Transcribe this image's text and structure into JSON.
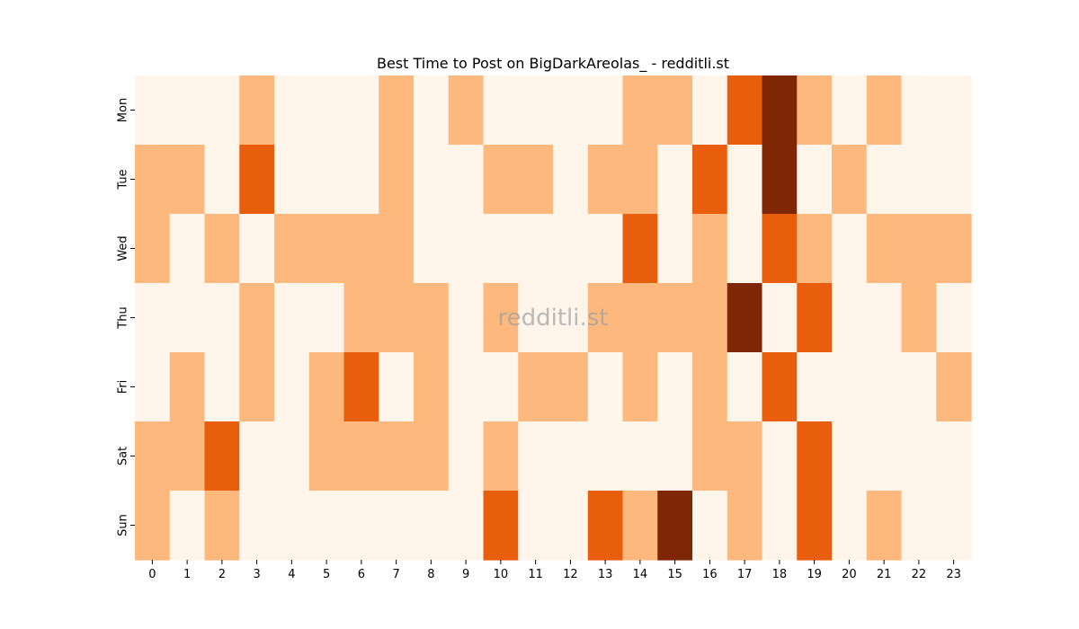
{
  "chart_data": {
    "type": "heatmap",
    "title": "Best Time to Post on BigDarkAreolas_ - redditli.st",
    "watermark": "redditli.st",
    "x_categories": [
      "0",
      "1",
      "2",
      "3",
      "4",
      "5",
      "6",
      "7",
      "8",
      "9",
      "10",
      "11",
      "12",
      "13",
      "14",
      "15",
      "16",
      "17",
      "18",
      "19",
      "20",
      "21",
      "22",
      "23"
    ],
    "y_categories": [
      "Mon",
      "Tue",
      "Wed",
      "Thu",
      "Fri",
      "Sat",
      "Sun"
    ],
    "value_range": [
      0,
      3
    ],
    "colors": [
      "#fff5eb",
      "#fdb97d",
      "#e95e0d",
      "#7f2704"
    ],
    "values": [
      [
        0,
        0,
        0,
        1,
        0,
        0,
        0,
        1,
        0,
        1,
        0,
        0,
        0,
        0,
        1,
        1,
        0,
        2,
        3,
        1,
        0,
        1,
        0,
        0
      ],
      [
        1,
        1,
        0,
        2,
        0,
        0,
        0,
        1,
        0,
        0,
        1,
        1,
        0,
        1,
        1,
        0,
        2,
        0,
        3,
        0,
        1,
        0,
        0,
        0
      ],
      [
        1,
        0,
        1,
        0,
        1,
        1,
        1,
        1,
        0,
        0,
        0,
        0,
        0,
        0,
        2,
        0,
        1,
        0,
        2,
        1,
        0,
        1,
        1,
        1
      ],
      [
        0,
        0,
        0,
        1,
        0,
        0,
        1,
        1,
        1,
        0,
        1,
        0,
        0,
        1,
        1,
        1,
        1,
        3,
        0,
        2,
        0,
        0,
        1,
        0
      ],
      [
        0,
        1,
        0,
        1,
        0,
        1,
        2,
        0,
        1,
        0,
        0,
        1,
        1,
        0,
        1,
        0,
        1,
        0,
        2,
        0,
        0,
        0,
        0,
        1
      ],
      [
        1,
        1,
        2,
        0,
        0,
        1,
        1,
        1,
        1,
        0,
        1,
        0,
        0,
        0,
        0,
        0,
        1,
        1,
        0,
        2,
        0,
        0,
        0,
        0
      ],
      [
        1,
        0,
        1,
        0,
        0,
        0,
        0,
        0,
        0,
        0,
        2,
        0,
        0,
        2,
        1,
        3,
        0,
        1,
        0,
        2,
        0,
        1,
        0,
        0
      ]
    ]
  }
}
